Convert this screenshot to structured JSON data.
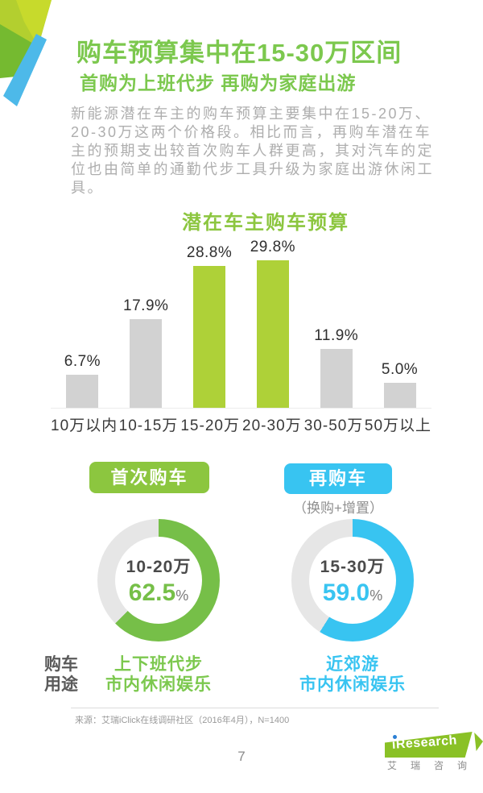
{
  "page": {
    "title": "购车预算集中在15-30万区间",
    "subtitle": "首购为上班代步 再购为家庭出游",
    "body_lines": [
      "新能源潜在车主的购车预算主要集中在15-20万、",
      "20-30万这两个价格段。相比而言，再购车潜在车",
      "主的预期支出较首次购车人群更高，其对汽车的定",
      "位也由简单的通勤代步工具升级为家庭出游休闲工",
      "具。"
    ],
    "usage_row_label_lines": [
      "购车",
      "用途"
    ],
    "source": "来源：艾瑞iClick在线调研社区（2016年4月），N=1400",
    "page_number": "7",
    "logo": {
      "brand": "iResearch",
      "brand_cn": "艾瑞咨询"
    }
  },
  "colors": {
    "title_green": "#7cc84e",
    "chart_title_green": "#8cc63f",
    "bar_green": "#aed138",
    "bar_gray": "#d2d2d2",
    "donut_green": "#76bf48",
    "donut_gray": "#e6e6e6",
    "cyan": "#38c4f1",
    "body_gray": "#aeaeae",
    "dark_text": "#383838"
  },
  "chart_data": [
    {
      "type": "bar",
      "title": "潜在车主购车预算",
      "categories": [
        "10万以内",
        "10-15万",
        "15-20万",
        "20-30万",
        "30-50万",
        "50万以上"
      ],
      "values": [
        6.7,
        17.9,
        28.8,
        29.8,
        11.9,
        5.0
      ],
      "labels": [
        "6.7%",
        "17.9%",
        "28.8%",
        "29.8%",
        "11.9%",
        "5.0%"
      ],
      "highlight": [
        false,
        false,
        true,
        true,
        false,
        false
      ],
      "unit": "%",
      "ylim": [
        0,
        34
      ],
      "grid": false,
      "legend": "none"
    },
    {
      "type": "donut",
      "group": "首次购车",
      "note": "",
      "center_label": "10-20万",
      "value": 62.5,
      "value_text": "62.5",
      "unit": "%",
      "usage_lines": [
        "上下班代步",
        "市内休闲娱乐"
      ],
      "color_key": "green"
    },
    {
      "type": "donut",
      "group": "再购车",
      "note": "（换购+增置）",
      "center_label": "15-30万",
      "value": 59.0,
      "value_text": "59.0",
      "unit": "%",
      "usage_lines": [
        "近郊游",
        "市内休闲娱乐"
      ],
      "color_key": "cyan"
    }
  ]
}
